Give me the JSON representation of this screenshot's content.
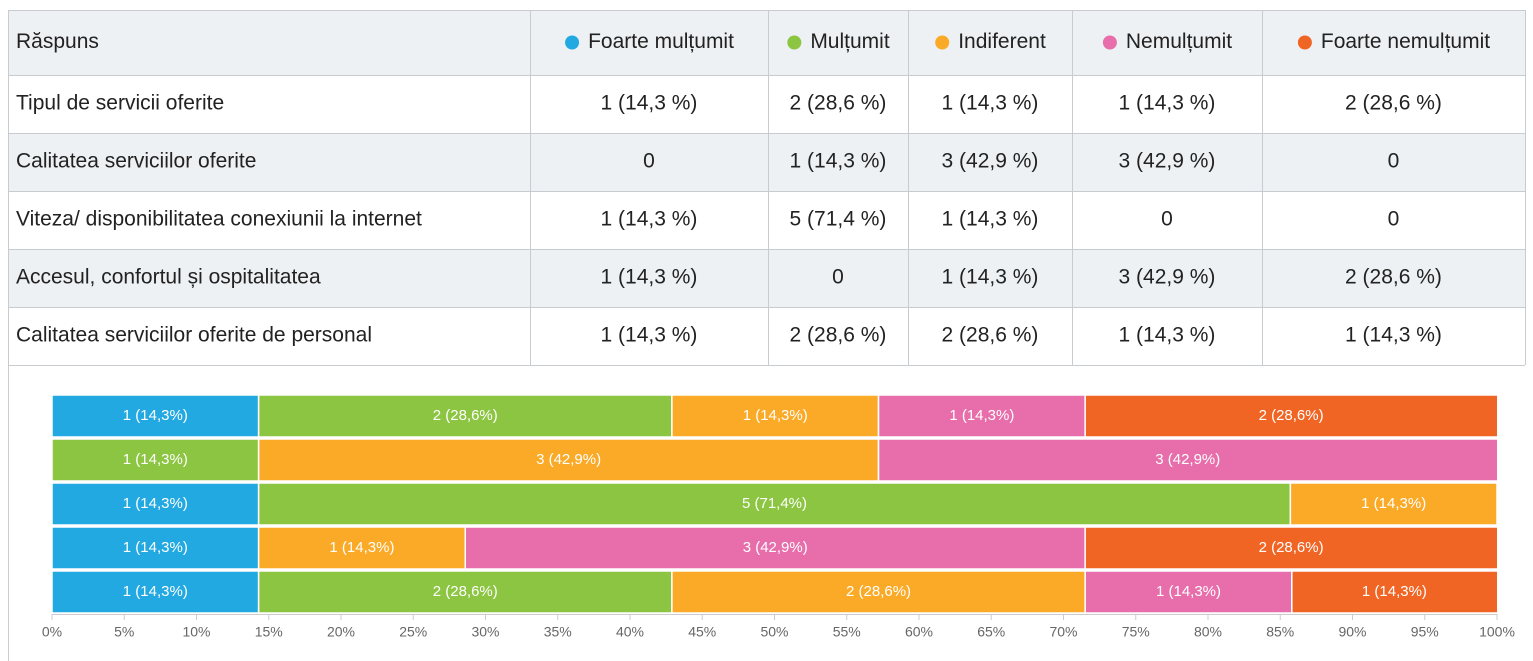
{
  "table": {
    "header": "Răspuns",
    "rows": [
      [
        "Tipul de servicii oferite",
        "1 (14,3 %)",
        "2 (28,6 %)",
        "1 (14,3 %)",
        "1 (14,3 %)",
        "2 (28,6 %)"
      ],
      [
        "Calitatea serviciilor oferite",
        "0",
        "1 (14,3 %)",
        "3 (42,9 %)",
        "3 (42,9 %)",
        "0"
      ],
      [
        "Viteza/ disponibilitatea conexiunii la internet",
        "1 (14,3 %)",
        "5 (71,4 %)",
        "1 (14,3 %)",
        "0",
        "0"
      ],
      [
        "Accesul, confortul și ospitalitatea",
        "1 (14,3 %)",
        "0",
        "1 (14,3 %)",
        "3 (42,9 %)",
        "2 (28,6 %)"
      ],
      [
        "Calitatea serviciilor oferite de personal",
        "1 (14,3 %)",
        "2 (28,6 %)",
        "2 (28,6 %)",
        "1 (14,3 %)",
        "1 (14,3 %)"
      ]
    ]
  },
  "chart_data": {
    "type": "stacked-bar",
    "orientation": "horizontal",
    "categories": [
      null,
      null,
      null,
      null,
      null
    ],
    "series": [
      {
        "name": "Foarte mulțumit",
        "color": "#23a9e1",
        "values": [
          14.3,
          0,
          14.3,
          14.3,
          14.3
        ],
        "value_labels": [
          "1 (14,3%)",
          null,
          "1 (14,3%)",
          "1 (14,3%)",
          "1 (14,3%)"
        ]
      },
      {
        "name": "Mulțumit",
        "color": "#8cc542",
        "values": [
          28.6,
          14.3,
          71.4,
          0,
          28.6
        ],
        "value_labels": [
          "2 (28,6%)",
          "1 (14,3%)",
          "5 (71,4%)",
          null,
          "2 (28,6%)"
        ]
      },
      {
        "name": "Indiferent",
        "color": "#fbaa27",
        "values": [
          14.3,
          42.9,
          14.3,
          14.3,
          28.6
        ],
        "value_labels": [
          "1 (14,3%)",
          "3 (42,9%)",
          "1 (14,3%)",
          "1 (14,3%)",
          "2 (28,6%)"
        ]
      },
      {
        "name": "Nemulțumit",
        "color": "#e76eab",
        "values": [
          14.3,
          42.9,
          0,
          42.9,
          14.3
        ],
        "value_labels": [
          "1 (14,3%)",
          "3 (42,9%)",
          null,
          "3 (42,9%)",
          "1 (14,3%)"
        ]
      },
      {
        "name": "Foarte nemulțumit",
        "color": "#f16524",
        "values": [
          28.6,
          0,
          0,
          28.6,
          14.3
        ],
        "value_labels": [
          "2 (28,6%)",
          null,
          null,
          "2 (28,6%)",
          "1 (14,3%)"
        ]
      }
    ],
    "xlim": [
      0,
      100
    ],
    "xticks": [
      {
        "value": 0,
        "label": "0%"
      },
      {
        "value": 5,
        "label": "5%"
      },
      {
        "value": 10,
        "label": "10%"
      },
      {
        "value": 15,
        "label": "15%"
      },
      {
        "value": 20,
        "label": "20%"
      },
      {
        "value": 25,
        "label": "25%"
      },
      {
        "value": 30,
        "label": "30%"
      },
      {
        "value": 35,
        "label": "35%"
      },
      {
        "value": 40,
        "label": "40%"
      },
      {
        "value": 45,
        "label": "45%"
      },
      {
        "value": 50,
        "label": "50%"
      },
      {
        "value": 55,
        "label": "55%"
      },
      {
        "value": 60,
        "label": "60%"
      },
      {
        "value": 65,
        "label": "65%"
      },
      {
        "value": 70,
        "label": "70%"
      },
      {
        "value": 75,
        "label": "75%"
      },
      {
        "value": 80,
        "label": "80%"
      },
      {
        "value": 85,
        "label": "85%"
      },
      {
        "value": 90,
        "label": "90%"
      },
      {
        "value": 95,
        "label": "95%"
      },
      {
        "value": 100,
        "label": "100%"
      }
    ],
    "grid": false
  }
}
